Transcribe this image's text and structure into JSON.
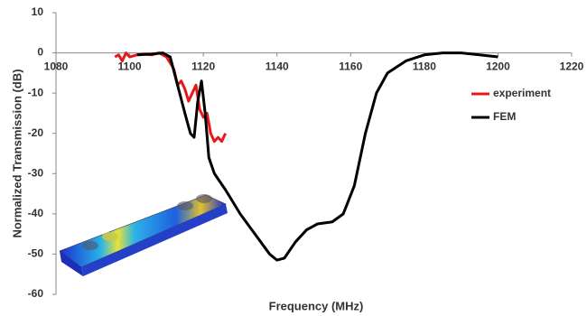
{
  "chart_data": {
    "type": "line",
    "x_label": "Frequency (MHz)",
    "y_label": "Normalized Transmission (dB)",
    "xlim": [
      1080,
      1220
    ],
    "xticks": [
      1080,
      1100,
      1120,
      1140,
      1160,
      1180,
      1200,
      1220
    ],
    "ylim": [
      -60,
      10
    ],
    "yticks": [
      -60,
      -50,
      -40,
      -30,
      -20,
      -10,
      0,
      10
    ],
    "legend": "right",
    "series": [
      {
        "name": "experiment",
        "color": "#e8181a",
        "x": [
          1096,
          1097,
          1098,
          1099,
          1100,
          1102,
          1104,
          1106,
          1108,
          1110,
          1112,
          1113,
          1114,
          1115,
          1116,
          1117,
          1118,
          1119,
          1120,
          1121,
          1122,
          1123,
          1124,
          1125,
          1126
        ],
        "values": [
          -1,
          -0.5,
          -2,
          0,
          -1,
          -0.5,
          -0.3,
          -0.5,
          0,
          -1,
          -4,
          -8,
          -7,
          -9,
          -12,
          -10,
          -8,
          -14,
          -16,
          -15,
          -20,
          -22,
          -21,
          -22,
          -20
        ]
      },
      {
        "name": "FEM",
        "color": "#000000",
        "x": [
          1102,
          1106,
          1109,
          1111,
          1113,
          1115,
          1116.5,
          1117.5,
          1118.5,
          1119.5,
          1120.5,
          1121.5,
          1123,
          1126,
          1130,
          1134,
          1138,
          1140,
          1142,
          1145,
          1148,
          1151,
          1155,
          1158,
          1161,
          1164,
          1167,
          1170,
          1175,
          1180,
          1185,
          1190,
          1195,
          1200
        ],
        "values": [
          -0.5,
          -0.3,
          0,
          -1,
          -8,
          -15,
          -20,
          -21,
          -12,
          -7,
          -15,
          -26,
          -30,
          -34,
          -40,
          -45,
          -50,
          -51.5,
          -51,
          -47,
          -44,
          -42.5,
          -42,
          -40,
          -33,
          -20,
          -10,
          -5,
          -2,
          -0.5,
          0,
          0,
          -0.5,
          -1
        ]
      }
    ]
  }
}
